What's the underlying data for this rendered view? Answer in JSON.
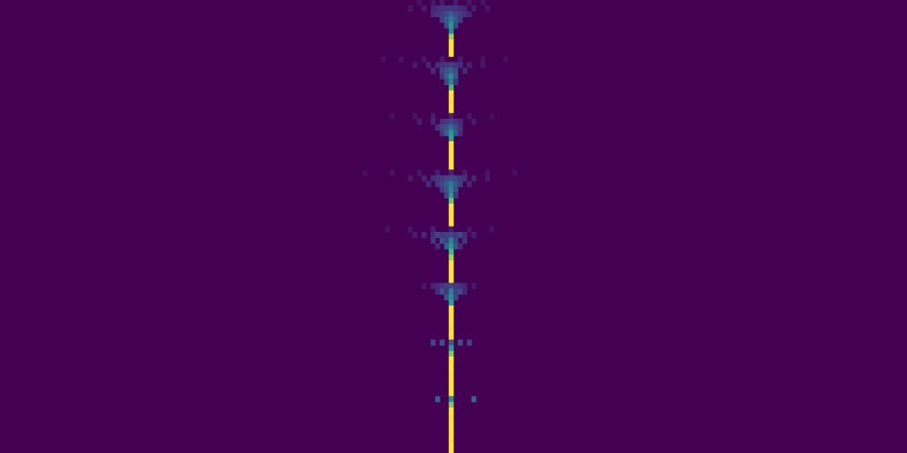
{
  "chart_data": {
    "type": "heatmap",
    "grid": false,
    "tick_labels": false,
    "xlim": [
      0,
      200
    ],
    "ylim": [
      0,
      80
    ],
    "color_range": [
      0,
      1
    ],
    "cells": [
      [
        92,
        0,
        0.05
      ],
      [
        95,
        0,
        0.06
      ],
      [
        97,
        0,
        0.07
      ],
      [
        100,
        0,
        0.07
      ],
      [
        103,
        0,
        0.06
      ],
      [
        106,
        0,
        0.05
      ],
      [
        90,
        1,
        0.06
      ],
      [
        93,
        1,
        0.08
      ],
      [
        95,
        1,
        0.1
      ],
      [
        96,
        1,
        0.12
      ],
      [
        97,
        1,
        0.14
      ],
      [
        98,
        1,
        0.15
      ],
      [
        99,
        1,
        0.15
      ],
      [
        100,
        1,
        0.14
      ],
      [
        101,
        1,
        0.12
      ],
      [
        102,
        1,
        0.1
      ],
      [
        104,
        1,
        0.08
      ],
      [
        107,
        1,
        0.06
      ],
      [
        95,
        2,
        0.12
      ],
      [
        96,
        2,
        0.15
      ],
      [
        97,
        2,
        0.18
      ],
      [
        98,
        2,
        0.22
      ],
      [
        99,
        2,
        0.3
      ],
      [
        100,
        2,
        0.22
      ],
      [
        101,
        2,
        0.18
      ],
      [
        102,
        2,
        0.14
      ],
      [
        103,
        2,
        0.1
      ],
      [
        97,
        3,
        0.18
      ],
      [
        98,
        3,
        0.28
      ],
      [
        99,
        3,
        0.42
      ],
      [
        100,
        3,
        0.28
      ],
      [
        101,
        3,
        0.16
      ],
      [
        98,
        4,
        0.22
      ],
      [
        99,
        4,
        0.55
      ],
      [
        100,
        4,
        0.2
      ],
      [
        99,
        5,
        0.5
      ],
      [
        99,
        6,
        0.85
      ],
      [
        99,
        7,
        1
      ],
      [
        99,
        8,
        1
      ],
      [
        99,
        9,
        1
      ],
      [
        84,
        10,
        0.04
      ],
      [
        88,
        10,
        0.05
      ],
      [
        93,
        10,
        0.06
      ],
      [
        97,
        10,
        0.07
      ],
      [
        101,
        10,
        0.07
      ],
      [
        106,
        10,
        0.05
      ],
      [
        111,
        10,
        0.04
      ],
      [
        91,
        11,
        0.07
      ],
      [
        94,
        11,
        0.1
      ],
      [
        96,
        11,
        0.12
      ],
      [
        97,
        11,
        0.14
      ],
      [
        98,
        11,
        0.16
      ],
      [
        99,
        11,
        0.18
      ],
      [
        100,
        11,
        0.15
      ],
      [
        101,
        11,
        0.12
      ],
      [
        103,
        11,
        0.09
      ],
      [
        106,
        11,
        0.06
      ],
      [
        95,
        12,
        0.12
      ],
      [
        97,
        12,
        0.2
      ],
      [
        98,
        12,
        0.25
      ],
      [
        99,
        12,
        0.32
      ],
      [
        100,
        12,
        0.22
      ],
      [
        102,
        12,
        0.12
      ],
      [
        97,
        13,
        0.15
      ],
      [
        98,
        13,
        0.3
      ],
      [
        99,
        13,
        0.5
      ],
      [
        100,
        13,
        0.25
      ],
      [
        98,
        14,
        0.2
      ],
      [
        99,
        14,
        0.45
      ],
      [
        100,
        14,
        0.15
      ],
      [
        99,
        15,
        0.7
      ],
      [
        99,
        16,
        1
      ],
      [
        99,
        17,
        1
      ],
      [
        99,
        18,
        1
      ],
      [
        99,
        19,
        1
      ],
      [
        86,
        20,
        0.04
      ],
      [
        91,
        20,
        0.05
      ],
      [
        95,
        20,
        0.07
      ],
      [
        99,
        20,
        0.08
      ],
      [
        103,
        20,
        0.06
      ],
      [
        108,
        20,
        0.04
      ],
      [
        92,
        21,
        0.08
      ],
      [
        95,
        21,
        0.1
      ],
      [
        97,
        21,
        0.13
      ],
      [
        98,
        21,
        0.16
      ],
      [
        99,
        21,
        0.2
      ],
      [
        100,
        21,
        0.15
      ],
      [
        101,
        21,
        0.12
      ],
      [
        104,
        21,
        0.07
      ],
      [
        96,
        22,
        0.14
      ],
      [
        97,
        22,
        0.2
      ],
      [
        98,
        22,
        0.26
      ],
      [
        99,
        22,
        0.35
      ],
      [
        100,
        22,
        0.24
      ],
      [
        101,
        22,
        0.14
      ],
      [
        97,
        23,
        0.16
      ],
      [
        98,
        23,
        0.3
      ],
      [
        99,
        23,
        0.55
      ],
      [
        100,
        23,
        0.28
      ],
      [
        101,
        23,
        0.12
      ],
      [
        99,
        24,
        0.6
      ],
      [
        99,
        25,
        1
      ],
      [
        99,
        26,
        1
      ],
      [
        99,
        27,
        1
      ],
      [
        99,
        28,
        1
      ],
      [
        99,
        29,
        1
      ],
      [
        80,
        30,
        0.04
      ],
      [
        86,
        30,
        0.05
      ],
      [
        92,
        30,
        0.06
      ],
      [
        96,
        30,
        0.08
      ],
      [
        99,
        30,
        0.09
      ],
      [
        102,
        30,
        0.07
      ],
      [
        107,
        30,
        0.05
      ],
      [
        113,
        30,
        0.04
      ],
      [
        90,
        31,
        0.07
      ],
      [
        93,
        31,
        0.1
      ],
      [
        95,
        31,
        0.13
      ],
      [
        96,
        31,
        0.15
      ],
      [
        97,
        31,
        0.17
      ],
      [
        98,
        31,
        0.2
      ],
      [
        99,
        31,
        0.22
      ],
      [
        100,
        31,
        0.2
      ],
      [
        101,
        31,
        0.16
      ],
      [
        102,
        31,
        0.13
      ],
      [
        104,
        31,
        0.1
      ],
      [
        107,
        31,
        0.07
      ],
      [
        94,
        32,
        0.12
      ],
      [
        96,
        32,
        0.16
      ],
      [
        97,
        32,
        0.2
      ],
      [
        98,
        32,
        0.28
      ],
      [
        99,
        32,
        0.4
      ],
      [
        100,
        32,
        0.27
      ],
      [
        101,
        32,
        0.18
      ],
      [
        103,
        32,
        0.1
      ],
      [
        97,
        33,
        0.16
      ],
      [
        98,
        33,
        0.26
      ],
      [
        99,
        33,
        0.45
      ],
      [
        100,
        33,
        0.24
      ],
      [
        98,
        34,
        0.2
      ],
      [
        99,
        34,
        0.55
      ],
      [
        100,
        34,
        0.15
      ],
      [
        99,
        35,
        0.75
      ],
      [
        99,
        36,
        1
      ],
      [
        99,
        37,
        1
      ],
      [
        99,
        38,
        1
      ],
      [
        99,
        39,
        1
      ],
      [
        85,
        40,
        0.05
      ],
      [
        90,
        40,
        0.06
      ],
      [
        95,
        40,
        0.08
      ],
      [
        99,
        40,
        0.08
      ],
      [
        103,
        40,
        0.06
      ],
      [
        108,
        40,
        0.05
      ],
      [
        91,
        41,
        0.07
      ],
      [
        93,
        41,
        0.1
      ],
      [
        95,
        41,
        0.12
      ],
      [
        96,
        41,
        0.2
      ],
      [
        97,
        41,
        0.15
      ],
      [
        98,
        41,
        0.18
      ],
      [
        99,
        41,
        0.2
      ],
      [
        100,
        41,
        0.16
      ],
      [
        101,
        41,
        0.22
      ],
      [
        102,
        41,
        0.12
      ],
      [
        104,
        41,
        0.08
      ],
      [
        95,
        42,
        0.15
      ],
      [
        97,
        42,
        0.25
      ],
      [
        98,
        42,
        0.18
      ],
      [
        99,
        42,
        0.45
      ],
      [
        100,
        42,
        0.2
      ],
      [
        102,
        42,
        0.15
      ],
      [
        96,
        43,
        0.12
      ],
      [
        98,
        43,
        0.3
      ],
      [
        99,
        43,
        0.55
      ],
      [
        100,
        43,
        0.25
      ],
      [
        101,
        43,
        0.12
      ],
      [
        99,
        44,
        0.7
      ],
      [
        99,
        45,
        0.85
      ],
      [
        99,
        46,
        1
      ],
      [
        99,
        47,
        1
      ],
      [
        99,
        48,
        1
      ],
      [
        99,
        49,
        1
      ],
      [
        93,
        50,
        0.06
      ],
      [
        95,
        50,
        0.1
      ],
      [
        96,
        50,
        0.12
      ],
      [
        97,
        50,
        0.15
      ],
      [
        98,
        50,
        0.18
      ],
      [
        99,
        50,
        0.2
      ],
      [
        100,
        50,
        0.16
      ],
      [
        101,
        50,
        0.14
      ],
      [
        102,
        50,
        0.1
      ],
      [
        104,
        50,
        0.06
      ],
      [
        96,
        51,
        0.12
      ],
      [
        97,
        51,
        0.25
      ],
      [
        98,
        51,
        0.15
      ],
      [
        99,
        51,
        0.45
      ],
      [
        100,
        51,
        0.18
      ],
      [
        101,
        51,
        0.22
      ],
      [
        102,
        51,
        0.1
      ],
      [
        98,
        52,
        0.25
      ],
      [
        99,
        52,
        0.5
      ],
      [
        100,
        52,
        0.2
      ],
      [
        99,
        53,
        0.6
      ],
      [
        99,
        54,
        1
      ],
      [
        99,
        55,
        1
      ],
      [
        99,
        56,
        1
      ],
      [
        99,
        57,
        1
      ],
      [
        99,
        58,
        1
      ],
      [
        99,
        59,
        1
      ],
      [
        95,
        60,
        0.2
      ],
      [
        97,
        60,
        0.25
      ],
      [
        99,
        60,
        0.3
      ],
      [
        101,
        60,
        0.25
      ],
      [
        103,
        60,
        0.2
      ],
      [
        99,
        61,
        0.55
      ],
      [
        99,
        62,
        0.8
      ],
      [
        99,
        63,
        1
      ],
      [
        99,
        64,
        1
      ],
      [
        99,
        65,
        1
      ],
      [
        99,
        66,
        1
      ],
      [
        99,
        67,
        1
      ],
      [
        99,
        68,
        1
      ],
      [
        99,
        69,
        1
      ],
      [
        96,
        70,
        0.3
      ],
      [
        99,
        70,
        0.5
      ],
      [
        104,
        70,
        0.3
      ],
      [
        99,
        71,
        0.8
      ],
      [
        99,
        72,
        1
      ],
      [
        99,
        73,
        1
      ],
      [
        99,
        74,
        1
      ],
      [
        99,
        75,
        1
      ],
      [
        99,
        76,
        1
      ],
      [
        99,
        77,
        1
      ],
      [
        99,
        78,
        1
      ],
      [
        99,
        79,
        1
      ]
    ]
  }
}
